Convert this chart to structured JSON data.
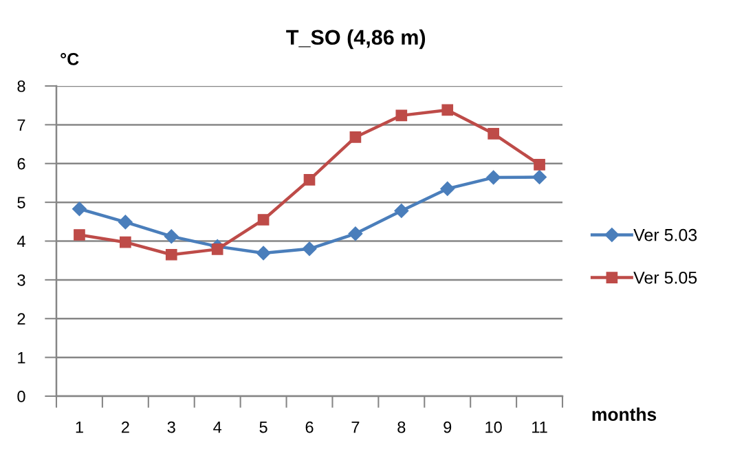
{
  "chart_data": {
    "type": "line",
    "title": "T_SO (4,86 m)",
    "ylabel": "°C",
    "xlabel": "months",
    "categories": [
      "1",
      "2",
      "3",
      "4",
      "5",
      "6",
      "7",
      "8",
      "9",
      "10",
      "11"
    ],
    "series": [
      {
        "name": "Ver 5.03",
        "color": "#4a7ebb",
        "marker": "diamond",
        "values": [
          4.83,
          4.49,
          4.12,
          3.86,
          3.69,
          3.8,
          4.19,
          4.78,
          5.35,
          5.64,
          5.65
        ]
      },
      {
        "name": "Ver 5.05",
        "color": "#be4b48",
        "marker": "square",
        "values": [
          4.16,
          3.97,
          3.65,
          3.79,
          4.55,
          5.58,
          6.68,
          7.24,
          7.38,
          6.77,
          5.97
        ]
      }
    ],
    "ylim": [
      0,
      8
    ],
    "yticks": [
      0,
      1,
      2,
      3,
      4,
      5,
      6,
      7,
      8
    ],
    "grid": "y",
    "legend": "right"
  }
}
